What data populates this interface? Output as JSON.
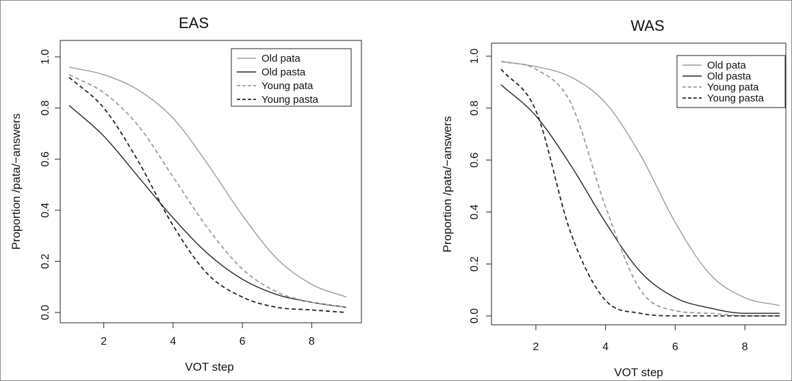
{
  "figure": {
    "colors": {
      "old": "#9a9a9a",
      "young_light": "#9a9a9a",
      "dark": "#222222"
    }
  },
  "chart_data": [
    {
      "type": "line",
      "title": "EAS",
      "xlabel": "VOT step",
      "ylabel": "Proportion /pata/−answers",
      "xlim": [
        1,
        9
      ],
      "ylim": [
        0,
        1
      ],
      "xticks": [
        2,
        4,
        6,
        8
      ],
      "yticks": [
        0.0,
        0.2,
        0.4,
        0.6,
        0.8,
        1.0
      ],
      "ytick_labels": [
        "0.0",
        "0.2",
        "0.4",
        "0.6",
        "0.8",
        "1.0"
      ],
      "grid": false,
      "legend_position": "top-right",
      "x": [
        1,
        2,
        3,
        4,
        5,
        6,
        7,
        8,
        9
      ],
      "series": [
        {
          "name": "Old pata",
          "style": "solid",
          "color": "#9a9a9a",
          "values": [
            0.96,
            0.93,
            0.87,
            0.76,
            0.58,
            0.38,
            0.21,
            0.11,
            0.06
          ]
        },
        {
          "name": "Old pasta",
          "style": "solid",
          "color": "#222222",
          "values": [
            0.81,
            0.69,
            0.53,
            0.37,
            0.23,
            0.13,
            0.07,
            0.04,
            0.02
          ]
        },
        {
          "name": "Young pata",
          "style": "dashed",
          "color": "#9a9a9a",
          "values": [
            0.93,
            0.86,
            0.73,
            0.53,
            0.33,
            0.17,
            0.08,
            0.04,
            0.02
          ]
        },
        {
          "name": "Young pasta",
          "style": "dashed",
          "color": "#222222",
          "values": [
            0.92,
            0.8,
            0.59,
            0.34,
            0.15,
            0.06,
            0.02,
            0.01,
            0.0
          ]
        }
      ]
    },
    {
      "type": "line",
      "title": "WAS",
      "xlabel": "VOT step",
      "ylabel": "Proportion /pata/−answers",
      "xlim": [
        1,
        9
      ],
      "ylim": [
        0,
        1
      ],
      "xticks": [
        2,
        4,
        6,
        8
      ],
      "yticks": [
        0.0,
        0.2,
        0.4,
        0.6,
        0.8,
        1.0
      ],
      "ytick_labels": [
        "0.0",
        "0.2",
        "0.4",
        "0.6",
        "0.8",
        "1.0"
      ],
      "grid": false,
      "legend_position": "top-right",
      "x": [
        1,
        2,
        3,
        4,
        5,
        6,
        7,
        8,
        9
      ],
      "series": [
        {
          "name": "Old pata",
          "style": "solid",
          "color": "#9a9a9a",
          "values": [
            0.98,
            0.96,
            0.92,
            0.82,
            0.62,
            0.36,
            0.16,
            0.07,
            0.04
          ]
        },
        {
          "name": "Old pasta",
          "style": "solid",
          "color": "#222222",
          "values": [
            0.89,
            0.77,
            0.58,
            0.36,
            0.17,
            0.07,
            0.03,
            0.01,
            0.01
          ]
        },
        {
          "name": "Young pata",
          "style": "dashed",
          "color": "#9a9a9a",
          "values": [
            0.98,
            0.95,
            0.82,
            0.42,
            0.1,
            0.02,
            0.01,
            0.0,
            0.0
          ]
        },
        {
          "name": "Young pasta",
          "style": "dashed",
          "color": "#222222",
          "values": [
            0.95,
            0.79,
            0.32,
            0.06,
            0.01,
            0.0,
            0.0,
            0.0,
            0.0
          ]
        }
      ]
    }
  ]
}
